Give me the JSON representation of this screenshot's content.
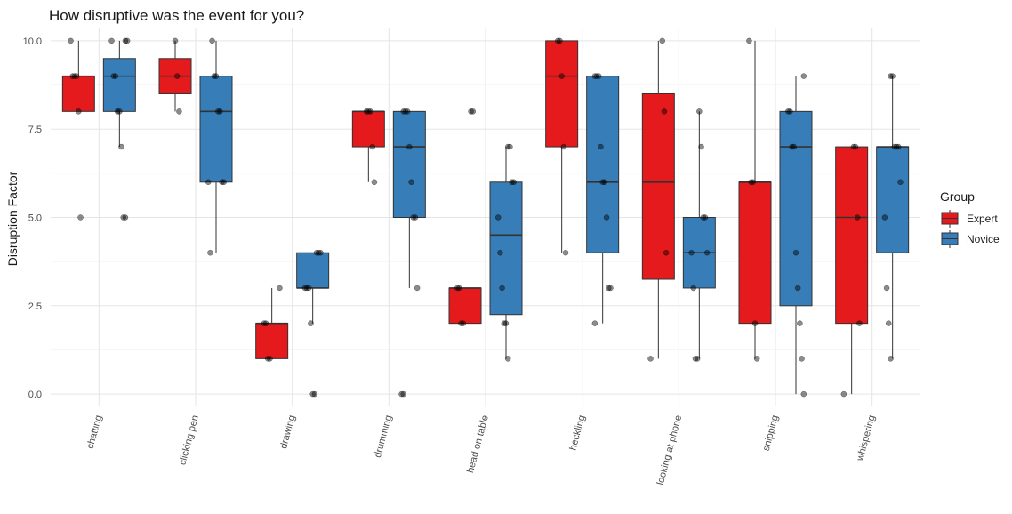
{
  "chart_data": {
    "type": "box",
    "title": "How disruptive was the event for you?",
    "xlabel": "",
    "ylabel": "Disruption Factor",
    "ylim": [
      -0.35,
      10.35
    ],
    "yticks": [
      0.0,
      2.5,
      5.0,
      7.5,
      10.0
    ],
    "ytick_labels": [
      "0.0",
      "2.5",
      "5.0",
      "7.5",
      "10.0"
    ],
    "grid": true,
    "legend_title": "Group",
    "legend_position": "right",
    "categories": [
      "chatting",
      "clicking pen",
      "drawing",
      "drumming",
      "head on table",
      "heckling",
      "looking at phone",
      "snipping",
      "whispering"
    ],
    "colors": {
      "Expert": "#E41A1C",
      "Novice": "#377EB8"
    },
    "series": [
      {
        "name": "Expert",
        "boxes": [
          {
            "q1": 8,
            "median": 9,
            "q3": 9,
            "whisker_low": 8,
            "whisker_high": 10,
            "points": [
              10,
              9,
              9,
              9,
              8,
              5
            ]
          },
          {
            "q1": 8.5,
            "median": 9,
            "q3": 9.5,
            "whisker_low": 8,
            "whisker_high": 10,
            "points": [
              10,
              9,
              8
            ]
          },
          {
            "q1": 1,
            "median": 2,
            "q3": 2,
            "whisker_low": 1,
            "whisker_high": 3,
            "points": [
              3,
              2,
              2,
              1,
              1
            ]
          },
          {
            "q1": 7,
            "median": 8,
            "q3": 8,
            "whisker_low": 6,
            "whisker_high": 8,
            "points": [
              8,
              8,
              8,
              7,
              6
            ]
          },
          {
            "q1": 2,
            "median": 3,
            "q3": 3,
            "whisker_low": 2,
            "whisker_high": 3,
            "points": [
              8,
              8,
              3,
              3,
              2,
              2
            ]
          },
          {
            "q1": 7,
            "median": 9,
            "q3": 10,
            "whisker_low": 4,
            "whisker_high": 10,
            "points": [
              10,
              10,
              9,
              7,
              4
            ]
          },
          {
            "q1": 3.25,
            "median": 6,
            "q3": 8.5,
            "whisker_low": 1,
            "whisker_high": 10,
            "points": [
              10,
              8,
              4,
              1
            ]
          },
          {
            "q1": 2,
            "median": 6,
            "q3": 6,
            "whisker_low": 1,
            "whisker_high": 10,
            "points": [
              10,
              6,
              6,
              2,
              1
            ]
          },
          {
            "q1": 2,
            "median": 5,
            "q3": 7,
            "whisker_low": 0,
            "whisker_high": 7,
            "points": [
              7,
              7,
              5,
              2,
              0
            ]
          }
        ]
      },
      {
        "name": "Novice",
        "boxes": [
          {
            "q1": 8,
            "median": 9,
            "q3": 9.5,
            "whisker_low": 7,
            "whisker_high": 10,
            "points": [
              10,
              10,
              10,
              9,
              9,
              8,
              8,
              7,
              5,
              5
            ]
          },
          {
            "q1": 6,
            "median": 8,
            "q3": 9,
            "whisker_low": 4,
            "whisker_high": 10,
            "points": [
              10,
              9,
              9,
              8,
              8,
              6,
              6,
              6,
              4
            ]
          },
          {
            "q1": 3,
            "median": 3,
            "q3": 4,
            "whisker_low": 2,
            "whisker_high": 4,
            "points": [
              4,
              4,
              4,
              3,
              3,
              3,
              2,
              0,
              0
            ]
          },
          {
            "q1": 5,
            "median": 7,
            "q3": 8,
            "whisker_low": 3,
            "whisker_high": 8,
            "points": [
              8,
              8,
              8,
              7,
              6,
              5,
              5,
              3,
              0,
              0
            ]
          },
          {
            "q1": 2.25,
            "median": 4.5,
            "q3": 6,
            "whisker_low": 1,
            "whisker_high": 7,
            "points": [
              7,
              7,
              6,
              6,
              5,
              4,
              3,
              2,
              2,
              1
            ]
          },
          {
            "q1": 4,
            "median": 6,
            "q3": 9,
            "whisker_low": 2,
            "whisker_high": 9,
            "points": [
              9,
              9,
              9,
              7,
              6,
              6,
              5,
              3,
              3,
              2
            ]
          },
          {
            "q1": 3,
            "median": 4,
            "q3": 5,
            "whisker_low": 1,
            "whisker_high": 8,
            "points": [
              8,
              7,
              5,
              5,
              4,
              4,
              3,
              1,
              1
            ]
          },
          {
            "q1": 2.5,
            "median": 7,
            "q3": 8,
            "whisker_low": 0,
            "whisker_high": 9,
            "points": [
              9,
              8,
              8,
              7,
              7,
              4,
              3,
              2,
              1,
              0
            ]
          },
          {
            "q1": 4,
            "median": 7,
            "q3": 7,
            "whisker_low": 1,
            "whisker_high": 9,
            "points": [
              9,
              9,
              7,
              7,
              7,
              6,
              5,
              3,
              2,
              1
            ]
          }
        ]
      }
    ]
  }
}
